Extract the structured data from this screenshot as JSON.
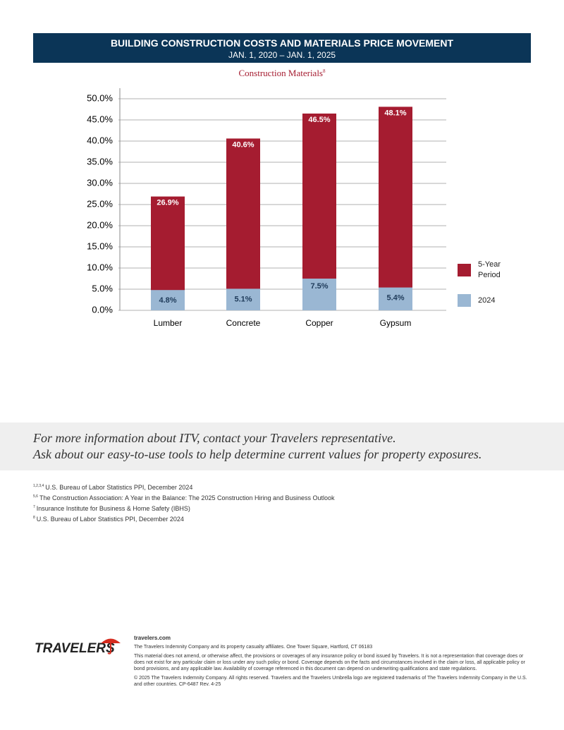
{
  "header": {
    "title": "BUILDING CONSTRUCTION COSTS AND MATERIALS PRICE MOVEMENT",
    "subtitle": "JAN. 1, 2020 – JAN. 1, 2025"
  },
  "chart_data": {
    "type": "bar",
    "title": "Construction Materials",
    "title_note": "8",
    "categories": [
      "Lumber",
      "Concrete",
      "Copper",
      "Gypsum"
    ],
    "series": [
      {
        "name": "5-Year Period",
        "color": "#a51c30",
        "values": [
          26.9,
          40.6,
          46.5,
          48.1
        ],
        "value_labels": [
          "26.9%",
          "40.6%",
          "46.5%",
          "48.1%"
        ]
      },
      {
        "name": "2024",
        "color": "#9ab7d3",
        "values": [
          4.8,
          5.1,
          7.5,
          5.4
        ],
        "value_labels": [
          "4.8%",
          "5.1%",
          "7.5%",
          "5.4%"
        ]
      }
    ],
    "ylim": [
      0,
      50
    ],
    "yticks": [
      {
        "value": 0,
        "label": "0.0%"
      },
      {
        "value": 5,
        "label": "5.0%"
      },
      {
        "value": 10,
        "label": "10.0%"
      },
      {
        "value": 15,
        "label": "15.0%"
      },
      {
        "value": 20,
        "label": "20.0%"
      },
      {
        "value": 25,
        "label": "25.0%"
      },
      {
        "value": 30,
        "label": "30.0%"
      },
      {
        "value": 35,
        "label": "35.0%"
      },
      {
        "value": 40,
        "label": "40.0%"
      },
      {
        "value": 45,
        "label": "45.0%"
      },
      {
        "value": 50,
        "label": "50.0%"
      }
    ],
    "grid": true
  },
  "callout": [
    "For more information about ITV, contact your Travelers representative.",
    "Ask about our easy-to-use tools to help determine current values for property exposures."
  ],
  "footnotes": [
    {
      "mark": "1,2,3,4",
      "text": "U.S. Bureau of Labor Statistics PPI, December 2024"
    },
    {
      "mark": "5,6",
      "text": "The Construction Association: A Year in the Balance: The 2025 Construction Hiring and Business Outlook"
    },
    {
      "mark": "7",
      "text": "Insurance Institute for Business & Home Safety (IBHS)"
    },
    {
      "mark": "8",
      "text": "U.S. Bureau of Labor Statistics PPI, December 2024"
    }
  ],
  "footer": {
    "logo": "TRAVELERS",
    "website": "travelers.com",
    "company": "The Travelers Indemnity Company and its property casualty affiliates. One Tower Square, Hartford, CT 06183",
    "disclaimer": "This material does not amend, or otherwise affect, the provisions or coverages of any insurance policy or bond issued by Travelers. It is not a representation that coverage does or does not exist for any particular claim or loss under any such policy or bond. Coverage depends on the facts and circumstances involved in the claim or loss, all applicable policy or bond provisions, and any applicable law. Availability of coverage referenced in this document can depend on underwriting qualifications and state regulations.",
    "copyright": "© 2025 The Travelers Indemnity Company. All rights reserved. Travelers and the Travelers Umbrella logo are registered trademarks of The Travelers Indemnity Company in the U.S. and other countries. CP-6487 Rev. 4-25"
  }
}
